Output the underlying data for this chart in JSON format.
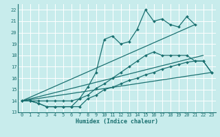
{
  "xlabel": "Humidex (Indice chaleur)",
  "bg_color": "#c8ecec",
  "grid_color": "#ffffff",
  "line_color": "#1a7070",
  "xlim": [
    -0.5,
    23.5
  ],
  "ylim": [
    13,
    22.5
  ],
  "xticks": [
    0,
    1,
    2,
    3,
    4,
    5,
    6,
    7,
    8,
    9,
    10,
    11,
    12,
    13,
    14,
    15,
    16,
    17,
    18,
    19,
    20,
    21,
    22,
    23
  ],
  "yticks": [
    13,
    14,
    15,
    16,
    17,
    18,
    19,
    20,
    21,
    22
  ],
  "curve1_x": [
    0,
    1,
    2,
    3,
    4,
    5,
    6,
    7,
    8,
    9,
    10,
    11,
    12,
    13,
    14,
    15,
    16,
    17,
    18,
    19,
    20,
    21
  ],
  "curve1_y": [
    14.0,
    14.0,
    13.8,
    13.5,
    13.5,
    13.5,
    13.5,
    14.2,
    15.2,
    16.5,
    19.4,
    19.7,
    19.0,
    19.2,
    20.3,
    22.0,
    21.0,
    21.2,
    20.7,
    20.5,
    21.4,
    20.7
  ],
  "curve2_x": [
    0,
    1,
    2,
    3,
    4,
    5,
    6,
    7,
    8,
    9,
    10,
    11,
    12,
    13,
    14,
    15,
    16,
    17,
    18,
    19,
    20,
    21,
    22,
    23
  ],
  "curve2_y": [
    14.0,
    14.0,
    14.0,
    14.0,
    14.0,
    14.0,
    14.0,
    14.2,
    14.5,
    15.1,
    15.5,
    16.0,
    16.5,
    17.0,
    17.5,
    18.0,
    18.3,
    18.0,
    18.0,
    18.0,
    18.0,
    17.5,
    17.5,
    16.5
  ],
  "curve3_x": [
    0,
    1,
    2,
    3,
    4,
    5,
    6,
    7,
    8,
    9,
    10,
    11,
    12,
    13,
    14,
    15,
    16,
    17,
    18,
    19,
    20,
    21,
    22,
    23
  ],
  "curve3_y": [
    14.0,
    14.0,
    13.8,
    13.5,
    13.5,
    13.5,
    13.5,
    13.5,
    14.2,
    14.5,
    15.0,
    15.2,
    15.5,
    15.8,
    16.0,
    16.3,
    16.5,
    16.8,
    17.0,
    17.2,
    17.4,
    17.5,
    17.5,
    16.5
  ],
  "refline1": [
    [
      0,
      14.0
    ],
    [
      21,
      20.7
    ]
  ],
  "refline2": [
    [
      0,
      14.0
    ],
    [
      22,
      18.0
    ]
  ],
  "refline3": [
    [
      0,
      14.0
    ],
    [
      23,
      16.5
    ]
  ]
}
